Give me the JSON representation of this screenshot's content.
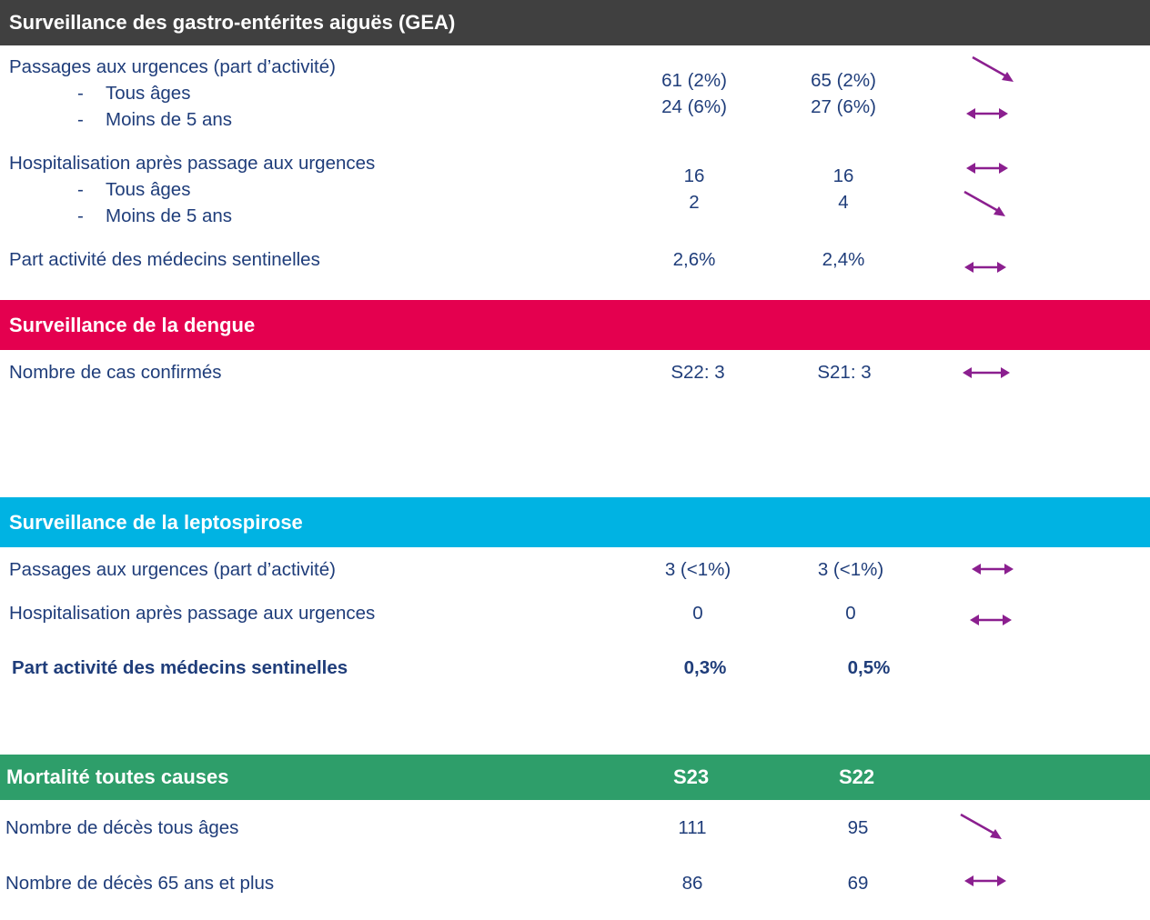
{
  "gea": {
    "title": "Surveillance des gastro-entérites aiguës (GEA)",
    "color": "#404040",
    "rows": {
      "passages_label": "Passages aux urgences (part d’activité)",
      "tous_ages": "Tous âges",
      "moins5": "Moins de 5 ans",
      "dash": "-",
      "passages_tous_s23": "61 (2%)",
      "passages_tous_s22": "65 (2%)",
      "passages_moins5_s23": "24 (6%)",
      "passages_moins5_s22": "27 (6%)",
      "hosp_label": "Hospitalisation après passage aux urgences",
      "hosp_tous_s23": "16",
      "hosp_tous_s22": "16",
      "hosp_moins5_s23": "2",
      "hosp_moins5_s22": "4",
      "medecins_label": "Part activité des médecins sentinelles",
      "medecins_s23": "2,6%",
      "medecins_s22": "2,4%"
    }
  },
  "dengue": {
    "title": "Surveillance de la dengue",
    "color": "#e4004f",
    "cas_label": "Nombre de cas confirmés",
    "cas_s22": "S22: 3",
    "cas_s21": "S21: 3"
  },
  "lepto": {
    "title": "Surveillance de la leptospirose",
    "color": "#00b3e3",
    "passages_label": "Passages aux urgences (part d’activité)",
    "passages_s23": "3 (<1%)",
    "passages_s22": "3 (<1%)",
    "hosp_label": "Hospitalisation après passage aux urgences",
    "hosp_s23": "0",
    "hosp_s22": "0",
    "medecins_label": "Part activité des médecins sentinelles",
    "medecins_s23": "0,3%",
    "medecins_s22": "0,5%"
  },
  "mortalite": {
    "title": "Mortalité toutes causes",
    "color": "#2e9e6a",
    "col1": "S23",
    "col2": "S22",
    "tous_label": "Nombre de décès tous âges",
    "tous_s23": "111",
    "tous_s22": "95",
    "plus65_label": "Nombre de décès 65 ans et plus",
    "plus65_s23": "86",
    "plus65_s22": "69"
  },
  "trend_color": "#8b1f8f"
}
